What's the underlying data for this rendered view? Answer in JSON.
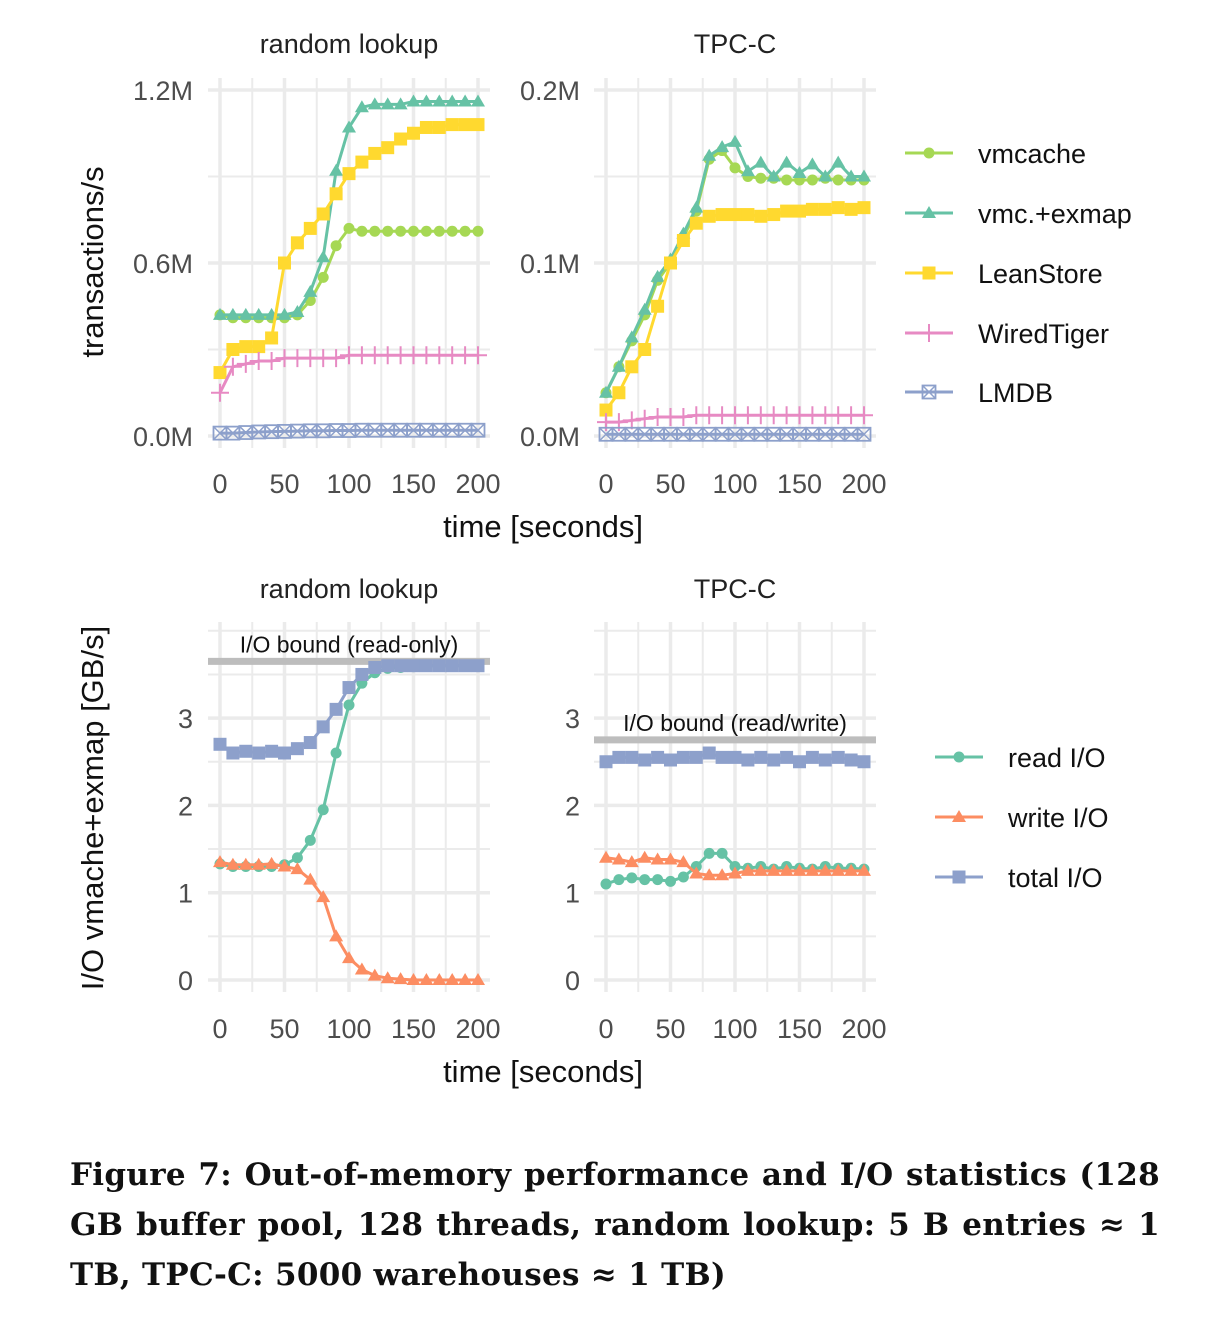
{
  "figure_caption": "Figure 7: Out-of-memory performance and I/O statistics (128 GB buffer pool, 128 threads, random lookup: 5 B entries ≈ 1 TB, TPC-C: 5000 warehouses ≈ 1 TB)",
  "chart_data": [
    {
      "type": "line",
      "row": "throughput",
      "ylabel": "transactions/s",
      "xlabel": "time [seconds]",
      "legend": "right",
      "grid": true,
      "x": [
        0,
        10,
        20,
        30,
        40,
        50,
        60,
        70,
        80,
        90,
        100,
        110,
        120,
        130,
        140,
        150,
        160,
        170,
        180,
        190,
        200
      ],
      "series_colors": {
        "vmcache": "#a6d854",
        "vmc.+exmap": "#66c2a5",
        "LeanStore": "#ffd92f",
        "WiredTiger": "#e78ac3",
        "LMDB": "#8da0cb"
      },
      "series_markers": {
        "vmcache": "circle",
        "vmc.+exmap": "triangle",
        "LeanStore": "square",
        "WiredTiger": "plus",
        "LMDB": "square-x"
      },
      "legend_entries": [
        "vmcache",
        "vmc.+exmap",
        "LeanStore",
        "WiredTiger",
        "LMDB"
      ],
      "panels": [
        {
          "title": "random lookup",
          "ylim": [
            0,
            1.2
          ],
          "yticks": [
            0,
            0.6,
            1.2
          ],
          "ytick_labels": [
            "0.0M",
            "0.6M",
            "1.2M"
          ],
          "xticks": [
            0,
            50,
            100,
            150,
            200
          ],
          "xtick_labels": [
            "0",
            "50",
            "100",
            "150",
            "200"
          ],
          "series": [
            {
              "name": "vmcache",
              "values": [
                0.42,
                0.41,
                0.41,
                0.41,
                0.41,
                0.41,
                0.42,
                0.47,
                0.55,
                0.66,
                0.72,
                0.71,
                0.71,
                0.71,
                0.71,
                0.71,
                0.71,
                0.71,
                0.71,
                0.71,
                0.71
              ]
            },
            {
              "name": "vmc.+exmap",
              "values": [
                0.42,
                0.42,
                0.42,
                0.42,
                0.42,
                0.42,
                0.43,
                0.5,
                0.62,
                0.92,
                1.07,
                1.14,
                1.15,
                1.15,
                1.15,
                1.16,
                1.16,
                1.16,
                1.16,
                1.16,
                1.16
              ]
            },
            {
              "name": "LeanStore",
              "values": [
                0.22,
                0.3,
                0.31,
                0.31,
                0.34,
                0.6,
                0.67,
                0.72,
                0.77,
                0.84,
                0.91,
                0.95,
                0.98,
                1.0,
                1.03,
                1.05,
                1.07,
                1.07,
                1.08,
                1.08,
                1.08
              ]
            },
            {
              "name": "WiredTiger",
              "values": [
                0.15,
                0.24,
                0.25,
                0.26,
                0.26,
                0.27,
                0.27,
                0.27,
                0.27,
                0.27,
                0.28,
                0.28,
                0.28,
                0.28,
                0.28,
                0.28,
                0.28,
                0.28,
                0.28,
                0.28,
                0.28
              ]
            },
            {
              "name": "LMDB",
              "values": [
                0.01,
                0.01,
                0.012,
                0.014,
                0.015,
                0.016,
                0.017,
                0.018,
                0.018,
                0.019,
                0.019,
                0.02,
                0.02,
                0.02,
                0.02,
                0.02,
                0.02,
                0.02,
                0.02,
                0.02,
                0.02
              ]
            }
          ]
        },
        {
          "title": "TPC-C",
          "ylim": [
            0,
            0.2
          ],
          "yticks": [
            0,
            0.1,
            0.2
          ],
          "ytick_labels": [
            "0.0M",
            "0.1M",
            "0.2M"
          ],
          "xticks": [
            0,
            50,
            100,
            150,
            200
          ],
          "xtick_labels": [
            "0",
            "50",
            "100",
            "150",
            "200"
          ],
          "series": [
            {
              "name": "vmcache",
              "values": [
                0.025,
                0.04,
                0.055,
                0.07,
                0.09,
                0.1,
                0.115,
                0.13,
                0.16,
                0.165,
                0.155,
                0.15,
                0.149,
                0.149,
                0.148,
                0.148,
                0.148,
                0.149,
                0.148,
                0.148,
                0.148
              ]
            },
            {
              "name": "vmc.+exmap",
              "values": [
                0.025,
                0.04,
                0.057,
                0.073,
                0.092,
                0.102,
                0.117,
                0.132,
                0.162,
                0.167,
                0.17,
                0.153,
                0.158,
                0.15,
                0.158,
                0.152,
                0.157,
                0.15,
                0.158,
                0.15,
                0.15
              ]
            },
            {
              "name": "LeanStore",
              "values": [
                0.015,
                0.025,
                0.04,
                0.05,
                0.075,
                0.1,
                0.113,
                0.123,
                0.127,
                0.128,
                0.128,
                0.128,
                0.127,
                0.128,
                0.13,
                0.13,
                0.131,
                0.131,
                0.132,
                0.131,
                0.132
              ]
            },
            {
              "name": "WiredTiger",
              "values": [
                0.008,
                0.008,
                0.009,
                0.01,
                0.011,
                0.011,
                0.011,
                0.012,
                0.012,
                0.012,
                0.012,
                0.012,
                0.012,
                0.012,
                0.012,
                0.012,
                0.012,
                0.012,
                0.012,
                0.012,
                0.012
              ]
            },
            {
              "name": "LMDB",
              "values": [
                0.001,
                0.001,
                0.001,
                0.001,
                0.001,
                0.001,
                0.001,
                0.001,
                0.001,
                0.001,
                0.001,
                0.001,
                0.001,
                0.001,
                0.001,
                0.001,
                0.001,
                0.001,
                0.001,
                0.001,
                0.001
              ]
            }
          ]
        }
      ]
    },
    {
      "type": "line",
      "row": "io",
      "ylabel": "I/O vmache+exmap [GB/s]",
      "xlabel": "time [seconds]",
      "legend": "right",
      "grid": true,
      "x": [
        0,
        10,
        20,
        30,
        40,
        50,
        60,
        70,
        80,
        90,
        100,
        110,
        120,
        130,
        140,
        150,
        160,
        170,
        180,
        190,
        200
      ],
      "series_colors": {
        "read I/O": "#66c2a5",
        "write I/O": "#fc8d62",
        "total I/O": "#8da0cb"
      },
      "series_markers": {
        "read I/O": "circle",
        "write I/O": "triangle",
        "total I/O": "square"
      },
      "legend_entries": [
        "read I/O",
        "write I/O",
        "total I/O"
      ],
      "reference_line_color": "#bdbdbd",
      "panels": [
        {
          "title": "random lookup",
          "ylim": [
            0,
            4
          ],
          "yticks": [
            0,
            1,
            2,
            3
          ],
          "ytick_labels": [
            "0",
            "1",
            "2",
            "3"
          ],
          "xticks": [
            0,
            50,
            100,
            150,
            200
          ],
          "xtick_labels": [
            "0",
            "50",
            "100",
            "150",
            "200"
          ],
          "reference": {
            "label": "I/O bound (read-only)",
            "value": 3.65
          },
          "series": [
            {
              "name": "read I/O",
              "values": [
                1.33,
                1.3,
                1.3,
                1.3,
                1.3,
                1.32,
                1.4,
                1.6,
                1.95,
                2.6,
                3.15,
                3.4,
                3.52,
                3.57,
                3.58,
                3.59,
                3.6,
                3.6,
                3.6,
                3.6,
                3.6
              ]
            },
            {
              "name": "write I/O",
              "values": [
                1.35,
                1.32,
                1.32,
                1.32,
                1.33,
                1.3,
                1.27,
                1.15,
                0.95,
                0.5,
                0.25,
                0.12,
                0.05,
                0.02,
                0.01,
                0,
                0,
                0,
                0,
                0,
                0
              ]
            },
            {
              "name": "total I/O",
              "values": [
                2.7,
                2.6,
                2.62,
                2.6,
                2.62,
                2.6,
                2.65,
                2.72,
                2.9,
                3.1,
                3.35,
                3.5,
                3.58,
                3.6,
                3.6,
                3.6,
                3.6,
                3.6,
                3.6,
                3.6,
                3.6
              ]
            }
          ]
        },
        {
          "title": "TPC-C",
          "ylim": [
            0,
            4
          ],
          "yticks": [
            0,
            1,
            2,
            3
          ],
          "ytick_labels": [
            "0",
            "1",
            "2",
            "3"
          ],
          "xticks": [
            0,
            50,
            100,
            150,
            200
          ],
          "xtick_labels": [
            "0",
            "50",
            "100",
            "150",
            "200"
          ],
          "reference": {
            "label": "I/O bound (read/write)",
            "value": 2.75
          },
          "series": [
            {
              "name": "read I/O",
              "values": [
                1.1,
                1.15,
                1.17,
                1.15,
                1.15,
                1.13,
                1.18,
                1.3,
                1.45,
                1.45,
                1.3,
                1.28,
                1.3,
                1.27,
                1.3,
                1.28,
                1.27,
                1.3,
                1.28,
                1.28,
                1.27
              ]
            },
            {
              "name": "write I/O",
              "values": [
                1.4,
                1.38,
                1.35,
                1.4,
                1.38,
                1.38,
                1.35,
                1.22,
                1.2,
                1.2,
                1.22,
                1.25,
                1.25,
                1.25,
                1.25,
                1.25,
                1.25,
                1.25,
                1.25,
                1.25,
                1.25
              ]
            },
            {
              "name": "total I/O",
              "values": [
                2.5,
                2.55,
                2.55,
                2.52,
                2.55,
                2.52,
                2.55,
                2.55,
                2.6,
                2.55,
                2.55,
                2.52,
                2.55,
                2.52,
                2.55,
                2.5,
                2.55,
                2.52,
                2.55,
                2.52,
                2.5
              ]
            }
          ]
        }
      ]
    }
  ]
}
